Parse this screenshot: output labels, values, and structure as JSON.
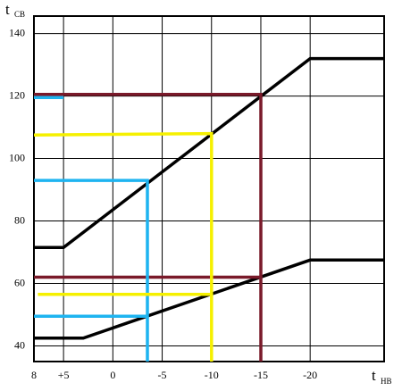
{
  "chart_data": {
    "type": "line",
    "ylabel": {
      "text": "t",
      "sub": "СВ"
    },
    "xlabel": {
      "text": "t",
      "sub": "НВ"
    },
    "xlim": [
      8,
      -27.5
    ],
    "ylim": [
      35,
      145.6
    ],
    "xticks": [
      8,
      {
        "value": 5,
        "label": "+5"
      },
      0,
      -5,
      -10,
      -15,
      -20
    ],
    "yticks": [
      40,
      60,
      80,
      100,
      120,
      140
    ],
    "grid": true,
    "series": [
      {
        "color": "#000000",
        "x": [
          8,
          5,
          -20,
          -27.5
        ],
        "values": [
          71.5,
          71.5,
          132,
          132
        ]
      },
      {
        "color": "#000000",
        "x": [
          8,
          3,
          -20,
          -27.5
        ],
        "values": [
          42.5,
          42.5,
          67.5,
          67.5
        ]
      },
      {
        "color": "#1eb4f0",
        "x": [
          8,
          5
        ],
        "values": [
          119.5,
          119.5
        ]
      },
      {
        "color": "#7a1a2a",
        "x": [
          8,
          -15,
          -15,
          null,
          8,
          -15
        ],
        "values": [
          120.5,
          120.5,
          35,
          null,
          62,
          62
        ]
      },
      {
        "color": "#1eb4f0",
        "x": [
          8,
          -3.5,
          -3.5,
          null,
          8,
          -3.5
        ],
        "values": [
          93,
          93,
          35,
          null,
          49.5,
          49.5
        ]
      },
      {
        "color": "#f5f000",
        "x": [
          8,
          -10,
          -10,
          null,
          7.6,
          -10
        ],
        "values": [
          107.5,
          108,
          35,
          null,
          56.5,
          56.5
        ]
      }
    ]
  }
}
